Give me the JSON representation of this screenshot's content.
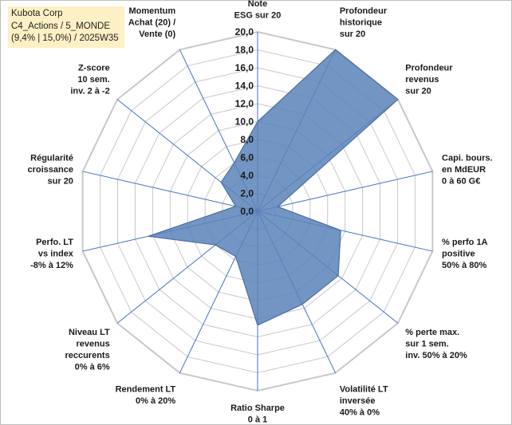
{
  "title": {
    "line1": "Kubota Corp",
    "line2": "C4_Actions / 5_MONDE",
    "line3": "(9,4% | 15,0%) / 2025W35"
  },
  "colors": {
    "grid": "#c8c8c8",
    "spoke": "#4472c4",
    "fill": "#5b82b8",
    "stroke": "#4a6fa5"
  },
  "chart_data": {
    "type": "radar",
    "title": "",
    "rmin": 0,
    "rmax": 20,
    "rstep": 2,
    "grid": true,
    "tick_labels": [
      "0,0",
      "2,0",
      "4,0",
      "6,0",
      "8,0",
      "10,0",
      "12,0",
      "14,0",
      "16,0",
      "18,0",
      "20,0"
    ],
    "categories": [
      [
        "Note",
        "ESG sur 20"
      ],
      [
        "Profondeur",
        "historique",
        "sur 20"
      ],
      [
        "Profondeur",
        "revenus",
        "sur 20"
      ],
      [
        "Capi. bours.",
        "en MdEUR",
        "0 à 60 G€"
      ],
      [
        "% perfo 1A",
        "positive",
        "50% à 80%"
      ],
      [
        "% perte max.",
        "sur 1 sem.",
        "inv. 50% à 20%"
      ],
      [
        "Volatilité LT",
        "inversée",
        "40% à 0%"
      ],
      [
        "Ratio Sharpe",
        "0 à 1"
      ],
      [
        "Rendement LT",
        "0% à 20%"
      ],
      [
        "Niveau LT",
        "revenus",
        "reccurents",
        "0% à 6%"
      ],
      [
        "Perfo. LT",
        "vs index",
        "-8% à 12%"
      ],
      [
        "Régularité",
        "croissance",
        "sur 20"
      ],
      [
        "Z-score",
        "10 sem.",
        "inv. 2 à -2"
      ],
      [
        "Momentum",
        "Achat (20) /",
        "Vente (0)"
      ]
    ],
    "series": [
      {
        "values": [
          10.0,
          20.0,
          20.0,
          2.3,
          9.5,
          11.5,
          11.5,
          12.7,
          5.6,
          6.0,
          12.5,
          2.5,
          5.2,
          6.0
        ]
      }
    ]
  }
}
